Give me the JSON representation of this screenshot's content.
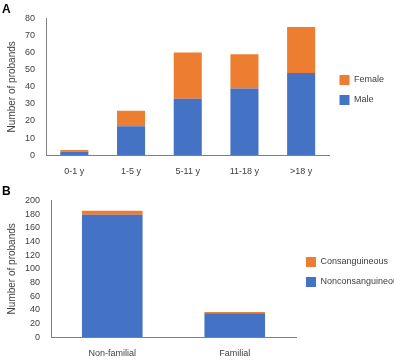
{
  "chart_data": [
    {
      "type": "bar",
      "title": "A",
      "y_label": "Number of probands",
      "categories": [
        "0-1 y",
        "1-5 y",
        "5-11 y",
        "11-18 y",
        ">18 y"
      ],
      "series": [
        {
          "name": "Male",
          "color": "#4472c4",
          "values": [
            2,
            17,
            33,
            39,
            48
          ]
        },
        {
          "name": "Female",
          "color": "#ed7d31",
          "values": [
            1,
            9,
            27,
            20,
            27
          ]
        }
      ],
      "ylim": [
        0,
        80
      ],
      "yticks": [
        0,
        10,
        20,
        30,
        40,
        50,
        60,
        70,
        80
      ],
      "stacked": true,
      "legend": "right",
      "grid": false
    },
    {
      "type": "bar",
      "title": "B",
      "y_label": "Number of probands",
      "categories": [
        "Non-familial",
        "Familial"
      ],
      "series": [
        {
          "name": "Nonconsanguineous",
          "color": "#4472c4",
          "values": [
            179,
            35
          ]
        },
        {
          "name": "Consanguineous",
          "color": "#ed7d31",
          "values": [
            6,
            2
          ]
        }
      ],
      "ylim": [
        0,
        200
      ],
      "yticks": [
        0,
        20,
        40,
        60,
        80,
        100,
        120,
        140,
        160,
        180,
        200
      ],
      "stacked": true,
      "legend": "right",
      "grid": false
    }
  ]
}
